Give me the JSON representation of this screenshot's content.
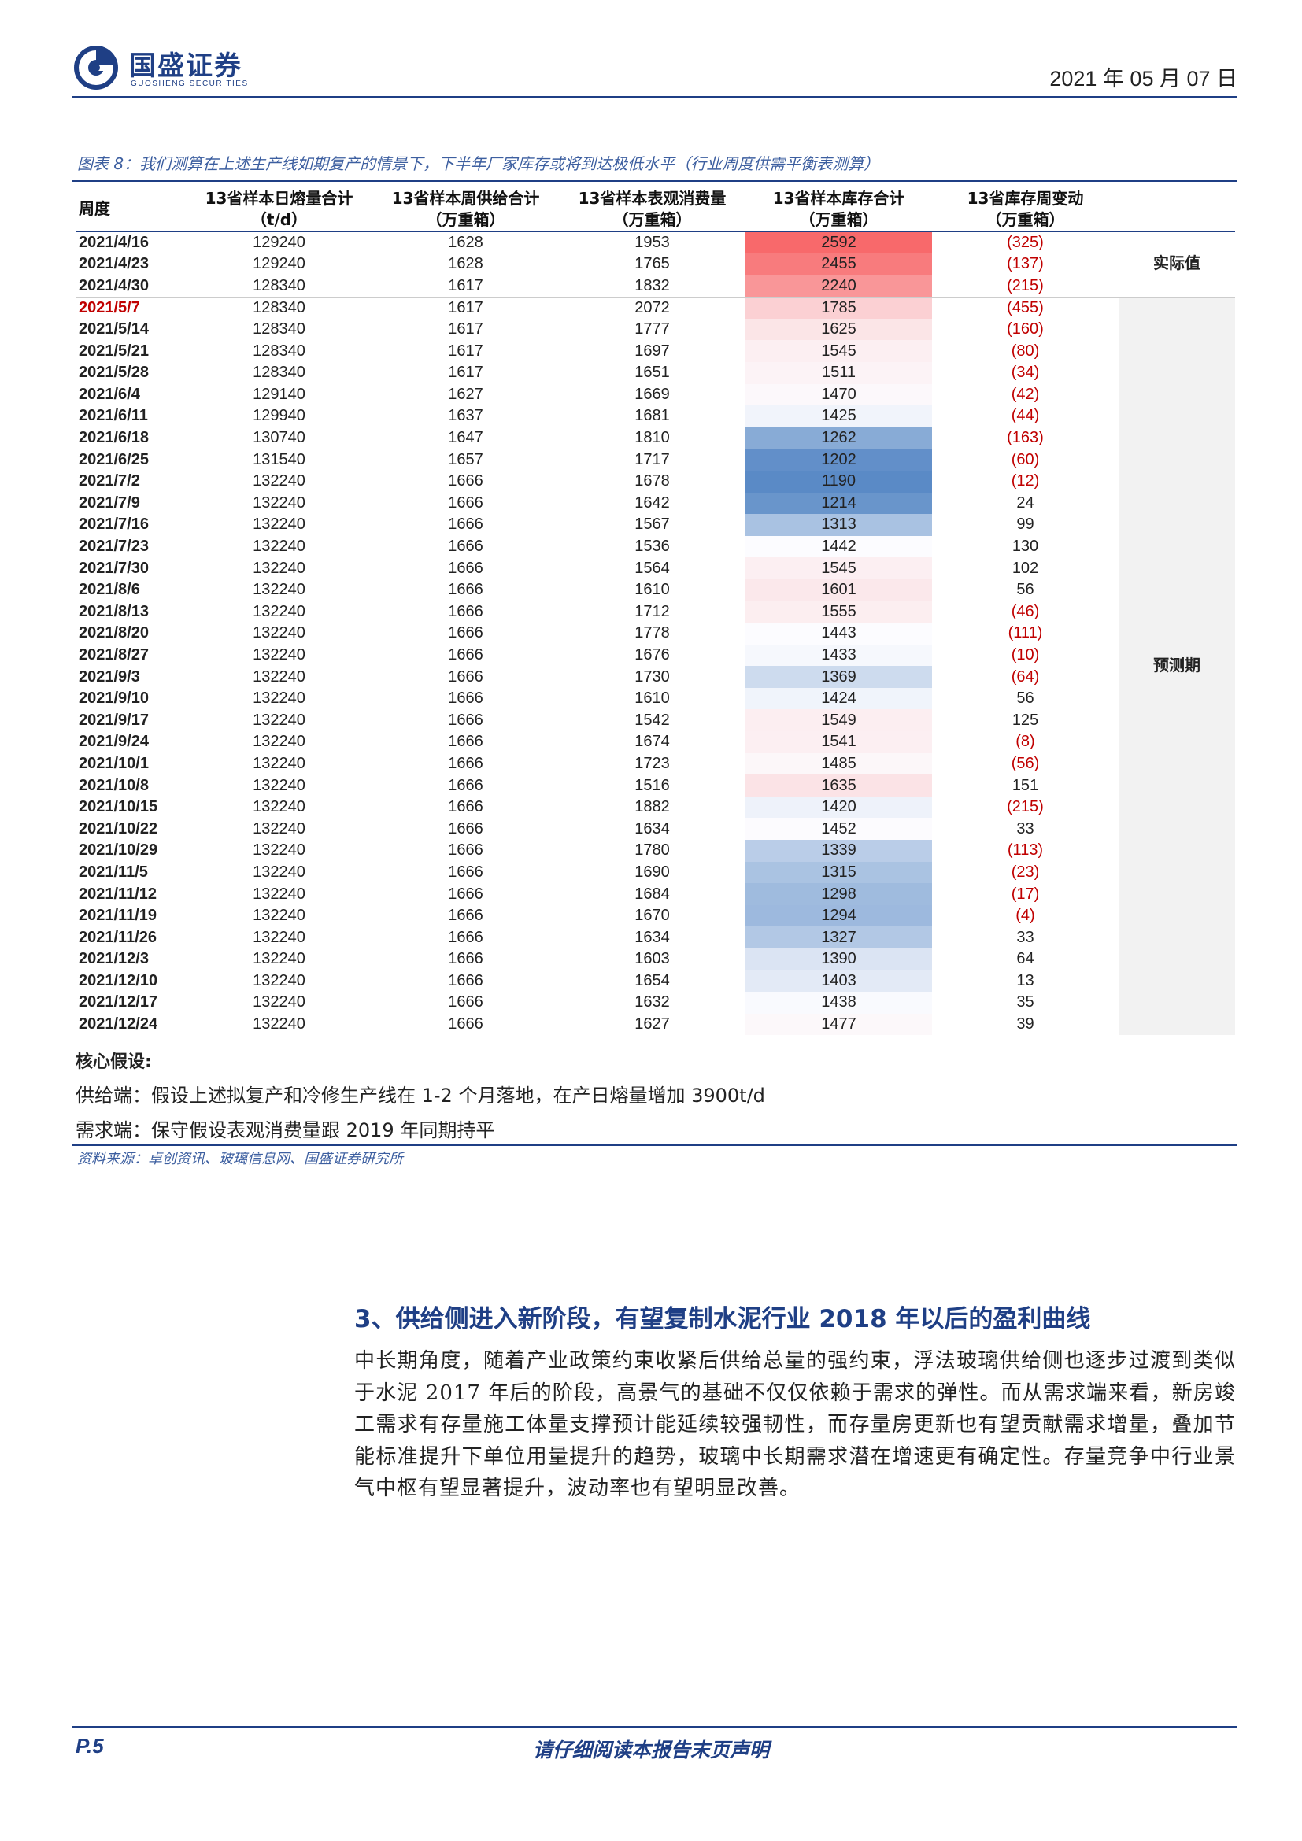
{
  "header": {
    "company_cn": "国盛证券",
    "company_en": "GUOSHENG SECURITIES",
    "date": "2021 年 05 月 07 日"
  },
  "figure": {
    "caption": "图表 8：我们测算在上述生产线如期复产的情景下，下半年厂家库存或将到达极低水平（行业周度供需平衡表测算）",
    "columns": [
      {
        "line1": "周度",
        "line2": ""
      },
      {
        "line1": "13省样本日熔量合计",
        "line2": "（t/d）"
      },
      {
        "line1": "13省样本周供给合计",
        "line2": "（万重箱）"
      },
      {
        "line1": "13省样本表观消费量",
        "line2": "（万重箱）"
      },
      {
        "line1": "13省样本库存合计",
        "line2": "（万重箱）"
      },
      {
        "line1": "13省库存周变动",
        "line2": "（万重箱）"
      }
    ],
    "flag_actual": "实际值",
    "flag_forecast": "预测期",
    "rows": [
      {
        "week": "2021/4/16",
        "melt": "129240",
        "supply": "1628",
        "demand": "1953",
        "stock": "2592",
        "change": "(325)"
      },
      {
        "week": "2021/4/23",
        "melt": "129240",
        "supply": "1628",
        "demand": "1765",
        "stock": "2455",
        "change": "(137)"
      },
      {
        "week": "2021/4/30",
        "melt": "128340",
        "supply": "1617",
        "demand": "1832",
        "stock": "2240",
        "change": "(215)"
      },
      {
        "week": "2021/5/7",
        "melt": "128340",
        "supply": "1617",
        "demand": "2072",
        "stock": "1785",
        "change": "(455)"
      },
      {
        "week": "2021/5/14",
        "melt": "128340",
        "supply": "1617",
        "demand": "1777",
        "stock": "1625",
        "change": "(160)"
      },
      {
        "week": "2021/5/21",
        "melt": "128340",
        "supply": "1617",
        "demand": "1697",
        "stock": "1545",
        "change": "(80)"
      },
      {
        "week": "2021/5/28",
        "melt": "128340",
        "supply": "1617",
        "demand": "1651",
        "stock": "1511",
        "change": "(34)"
      },
      {
        "week": "2021/6/4",
        "melt": "129140",
        "supply": "1627",
        "demand": "1669",
        "stock": "1470",
        "change": "(42)"
      },
      {
        "week": "2021/6/11",
        "melt": "129940",
        "supply": "1637",
        "demand": "1681",
        "stock": "1425",
        "change": "(44)"
      },
      {
        "week": "2021/6/18",
        "melt": "130740",
        "supply": "1647",
        "demand": "1810",
        "stock": "1262",
        "change": "(163)"
      },
      {
        "week": "2021/6/25",
        "melt": "131540",
        "supply": "1657",
        "demand": "1717",
        "stock": "1202",
        "change": "(60)"
      },
      {
        "week": "2021/7/2",
        "melt": "132240",
        "supply": "1666",
        "demand": "1678",
        "stock": "1190",
        "change": "(12)"
      },
      {
        "week": "2021/7/9",
        "melt": "132240",
        "supply": "1666",
        "demand": "1642",
        "stock": "1214",
        "change": "24"
      },
      {
        "week": "2021/7/16",
        "melt": "132240",
        "supply": "1666",
        "demand": "1567",
        "stock": "1313",
        "change": "99"
      },
      {
        "week": "2021/7/23",
        "melt": "132240",
        "supply": "1666",
        "demand": "1536",
        "stock": "1442",
        "change": "130"
      },
      {
        "week": "2021/7/30",
        "melt": "132240",
        "supply": "1666",
        "demand": "1564",
        "stock": "1545",
        "change": "102"
      },
      {
        "week": "2021/8/6",
        "melt": "132240",
        "supply": "1666",
        "demand": "1610",
        "stock": "1601",
        "change": "56"
      },
      {
        "week": "2021/8/13",
        "melt": "132240",
        "supply": "1666",
        "demand": "1712",
        "stock": "1555",
        "change": "(46)"
      },
      {
        "week": "2021/8/20",
        "melt": "132240",
        "supply": "1666",
        "demand": "1778",
        "stock": "1443",
        "change": "(111)"
      },
      {
        "week": "2021/8/27",
        "melt": "132240",
        "supply": "1666",
        "demand": "1676",
        "stock": "1433",
        "change": "(10)"
      },
      {
        "week": "2021/9/3",
        "melt": "132240",
        "supply": "1666",
        "demand": "1730",
        "stock": "1369",
        "change": "(64)"
      },
      {
        "week": "2021/9/10",
        "melt": "132240",
        "supply": "1666",
        "demand": "1610",
        "stock": "1424",
        "change": "56"
      },
      {
        "week": "2021/9/17",
        "melt": "132240",
        "supply": "1666",
        "demand": "1542",
        "stock": "1549",
        "change": "125"
      },
      {
        "week": "2021/9/24",
        "melt": "132240",
        "supply": "1666",
        "demand": "1674",
        "stock": "1541",
        "change": "(8)"
      },
      {
        "week": "2021/10/1",
        "melt": "132240",
        "supply": "1666",
        "demand": "1723",
        "stock": "1485",
        "change": "(56)"
      },
      {
        "week": "2021/10/8",
        "melt": "132240",
        "supply": "1666",
        "demand": "1516",
        "stock": "1635",
        "change": "151"
      },
      {
        "week": "2021/10/15",
        "melt": "132240",
        "supply": "1666",
        "demand": "1882",
        "stock": "1420",
        "change": "(215)"
      },
      {
        "week": "2021/10/22",
        "melt": "132240",
        "supply": "1666",
        "demand": "1634",
        "stock": "1452",
        "change": "33"
      },
      {
        "week": "2021/10/29",
        "melt": "132240",
        "supply": "1666",
        "demand": "1780",
        "stock": "1339",
        "change": "(113)"
      },
      {
        "week": "2021/11/5",
        "melt": "132240",
        "supply": "1666",
        "demand": "1690",
        "stock": "1315",
        "change": "(23)"
      },
      {
        "week": "2021/11/12",
        "melt": "132240",
        "supply": "1666",
        "demand": "1684",
        "stock": "1298",
        "change": "(17)"
      },
      {
        "week": "2021/11/19",
        "melt": "132240",
        "supply": "1666",
        "demand": "1670",
        "stock": "1294",
        "change": "(4)"
      },
      {
        "week": "2021/11/26",
        "melt": "132240",
        "supply": "1666",
        "demand": "1634",
        "stock": "1327",
        "change": "33"
      },
      {
        "week": "2021/12/3",
        "melt": "132240",
        "supply": "1666",
        "demand": "1603",
        "stock": "1390",
        "change": "64"
      },
      {
        "week": "2021/12/10",
        "melt": "132240",
        "supply": "1666",
        "demand": "1654",
        "stock": "1403",
        "change": "13"
      },
      {
        "week": "2021/12/17",
        "melt": "132240",
        "supply": "1666",
        "demand": "1632",
        "stock": "1438",
        "change": "35"
      },
      {
        "week": "2021/12/24",
        "melt": "132240",
        "supply": "1666",
        "demand": "1627",
        "stock": "1477",
        "change": "39"
      }
    ],
    "highlight_week": "2021/5/7",
    "heat_colors": {
      "high": "#f8696b",
      "mid": "#fcfcff",
      "low": "#5a8ac6"
    },
    "negative_color": "#c00000",
    "notes_title": "核心假设:",
    "notes": [
      "供给端：假设上述拟复产和冷修生产线在 1-2 个月落地，在产日熔量增加 3900t/d",
      "需求端：保守假设表观消费量跟 2019 年同期持平"
    ],
    "source": "资料来源：卓创资讯、玻璃信息网、国盛证券研究所"
  },
  "section": {
    "title": "3、供给侧进入新阶段，有望复制水泥行业 2018 年以后的盈利曲线",
    "body": "中长期角度，随着产业政策约束收紧后供给总量的强约束，浮法玻璃供给侧也逐步过渡到类似于水泥 2017 年后的阶段，高景气的基础不仅仅依赖于需求的弹性。而从需求端来看，新房竣工需求有存量施工体量支撑预计能延续较强韧性，而存量房更新也有望贡献需求增量，叠加节能标准提升下单位用量提升的趋势，玻璃中长期需求潜在增速更有确定性。存量竞争中行业景气中枢有望显著提升，波动率也有望明显改善。"
  },
  "footer": {
    "page": "P.5",
    "disclaimer": "请仔细阅读本报告末页声明"
  }
}
